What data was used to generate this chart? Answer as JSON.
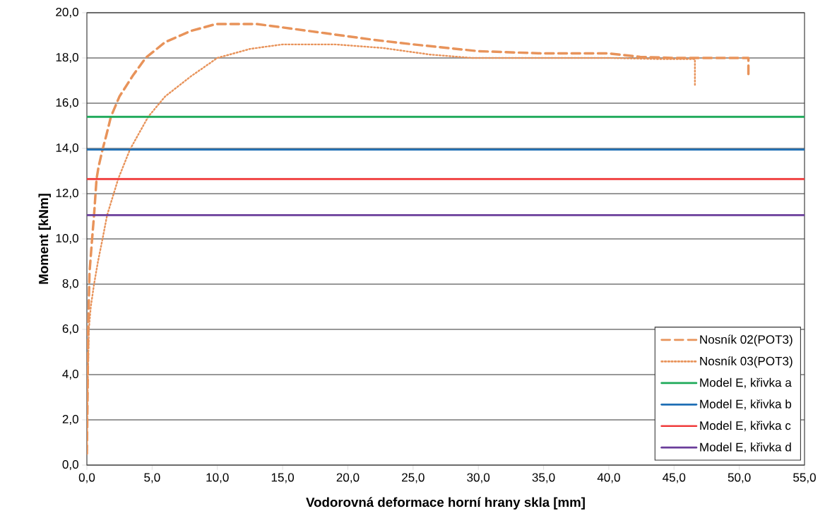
{
  "chart_data": {
    "type": "line",
    "xlabel": "Vodorovná deformace horní hrany skla [mm]",
    "ylabel": "Moment [kNm]",
    "xlim": [
      0,
      55
    ],
    "ylim": [
      0,
      20
    ],
    "xticks": [
      {
        "value": 0,
        "label": "0,0"
      },
      {
        "value": 5,
        "label": "5,0"
      },
      {
        "value": 10,
        "label": "10,0"
      },
      {
        "value": 15,
        "label": "15,0"
      },
      {
        "value": 20,
        "label": "20,0"
      },
      {
        "value": 25,
        "label": "25,0"
      },
      {
        "value": 30,
        "label": "30,0"
      },
      {
        "value": 35,
        "label": "35,0"
      },
      {
        "value": 40,
        "label": "40,0"
      },
      {
        "value": 45,
        "label": "45,0"
      },
      {
        "value": 50,
        "label": "50,0"
      },
      {
        "value": 55,
        "label": "55,0"
      }
    ],
    "yticks": [
      {
        "value": 0,
        "label": "0,0"
      },
      {
        "value": 2,
        "label": "2,0"
      },
      {
        "value": 4,
        "label": "4,0"
      },
      {
        "value": 6,
        "label": "6,0"
      },
      {
        "value": 8,
        "label": "8,0"
      },
      {
        "value": 10,
        "label": "10,0"
      },
      {
        "value": 12,
        "label": "12,0"
      },
      {
        "value": 14,
        "label": "14,0"
      },
      {
        "value": 16,
        "label": "16,0"
      },
      {
        "value": 18,
        "label": "18,0"
      },
      {
        "value": 20,
        "label": "20,0"
      }
    ],
    "grid": "y",
    "legend": "bottom right",
    "series": [
      {
        "name": "Nosník 02(POT3)",
        "color": "#e8935a",
        "line_style": "dashed",
        "x": [
          0,
          0.05,
          0.1,
          0.2,
          0.4,
          0.55,
          0.74,
          0.9,
          1.2,
          1.5,
          1.84,
          2.5,
          3.5,
          4.5,
          6,
          8,
          9.9,
          13,
          15,
          18.2,
          22,
          25,
          30,
          35,
          37.5,
          40,
          42.4,
          45,
          50.7,
          50.7
        ],
        "values": [
          0.5,
          3,
          6,
          8.5,
          10,
          11.05,
          12.65,
          13.2,
          13.95,
          14.6,
          15.4,
          16.3,
          17.2,
          18,
          18.7,
          19.2,
          19.5,
          19.5,
          19.35,
          19.1,
          18.8,
          18.6,
          18.3,
          18.2,
          18.2,
          18.2,
          18.05,
          18,
          18,
          17.2
        ]
      },
      {
        "name": "Nosník 03(POT3)",
        "color": "#e8935a",
        "line_style": "dotted",
        "x": [
          0,
          0.05,
          0.15,
          0.3,
          0.55,
          0.85,
          1.2,
          1.55,
          2.4,
          3.3,
          4.7,
          6,
          8,
          10,
          12.5,
          15,
          17.7,
          19,
          22.7,
          26.3,
          29.5,
          35,
          40,
          44,
          46.6,
          46.6
        ],
        "values": [
          0.5,
          3,
          6,
          7,
          8,
          9,
          10,
          11.05,
          12.65,
          13.95,
          15.4,
          16.3,
          17.2,
          18,
          18.4,
          18.6,
          18.6,
          18.6,
          18.44,
          18.15,
          18,
          18,
          18,
          17.95,
          17.95,
          16.8
        ]
      },
      {
        "name": "Model E, křivka a",
        "color": "#1faa5a",
        "line_style": "solid",
        "x": [
          0,
          55
        ],
        "values": [
          15.4,
          15.4
        ]
      },
      {
        "name": "Model E, křivka b",
        "color": "#1f6fb5",
        "line_style": "solid",
        "x": [
          0,
          55
        ],
        "values": [
          13.95,
          13.95
        ]
      },
      {
        "name": "Model E, křivka c",
        "color": "#f03c3c",
        "line_style": "solid",
        "x": [
          0,
          55
        ],
        "values": [
          12.65,
          12.65
        ]
      },
      {
        "name": "Model E, křivka d",
        "color": "#6a3d9a",
        "line_style": "solid",
        "x": [
          0,
          55
        ],
        "values": [
          11.05,
          11.05
        ]
      }
    ]
  }
}
